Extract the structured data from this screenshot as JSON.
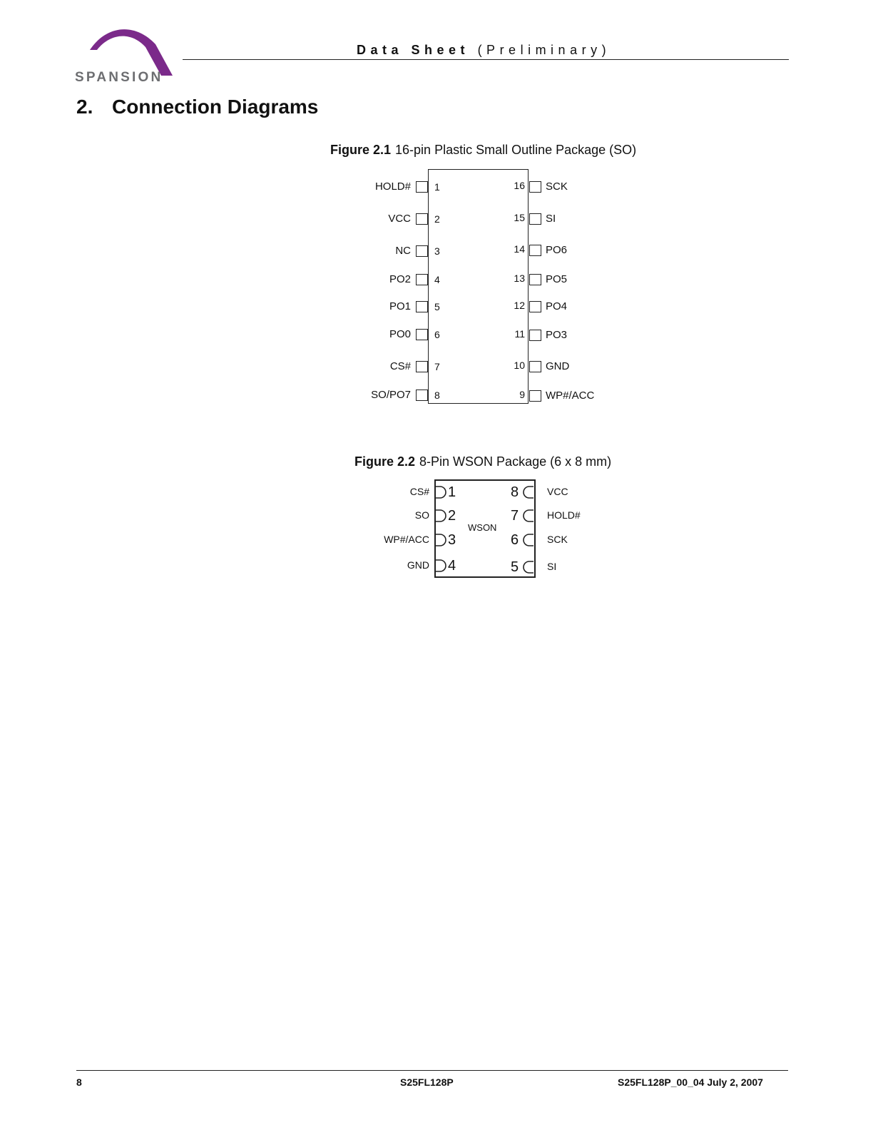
{
  "header": {
    "logo_text": "SPANSION",
    "running_head_bold": "Data Sheet",
    "running_head_normal": "(Preliminary)",
    "brand_color": "#7b2a8a"
  },
  "section": {
    "number": "2.",
    "title": "Connection Diagrams"
  },
  "figure_2_1": {
    "label": "Figure 2.1",
    "caption": "16-pin Plastic Small Outline Package (SO)",
    "left_pins": [
      {
        "num": "1",
        "name": "HOLD#"
      },
      {
        "num": "2",
        "name": "VCC"
      },
      {
        "num": "3",
        "name": "NC"
      },
      {
        "num": "4",
        "name": "PO2"
      },
      {
        "num": "5",
        "name": "PO1"
      },
      {
        "num": "6",
        "name": "PO0"
      },
      {
        "num": "7",
        "name": "CS#"
      },
      {
        "num": "8",
        "name": "SO/PO7"
      }
    ],
    "right_pins": [
      {
        "num": "16",
        "name": "SCK"
      },
      {
        "num": "15",
        "name": "SI"
      },
      {
        "num": "14",
        "name": "PO6"
      },
      {
        "num": "13",
        "name": "PO5"
      },
      {
        "num": "12",
        "name": "PO4"
      },
      {
        "num": "11",
        "name": "PO3"
      },
      {
        "num": "10",
        "name": "GND"
      },
      {
        "num": "9",
        "name": "WP#/ACC"
      }
    ]
  },
  "figure_2_2": {
    "label": "Figure 2.2",
    "caption": "8-Pin WSON Package (6 x 8 mm)",
    "center_label": "WSON",
    "left_pins": [
      {
        "num": "1",
        "name": "CS#"
      },
      {
        "num": "2",
        "name": "SO"
      },
      {
        "num": "3",
        "name": "WP#/ACC"
      },
      {
        "num": "4",
        "name": "GND"
      }
    ],
    "right_pins": [
      {
        "num": "8",
        "name": "VCC"
      },
      {
        "num": "7",
        "name": "HOLD#"
      },
      {
        "num": "6",
        "name": "SCK"
      },
      {
        "num": "5",
        "name": "SI"
      }
    ]
  },
  "footer": {
    "page_number": "8",
    "part_number": "S25FL128P",
    "doc_id": "S25FL128P_00_04  July 2, 2007"
  }
}
